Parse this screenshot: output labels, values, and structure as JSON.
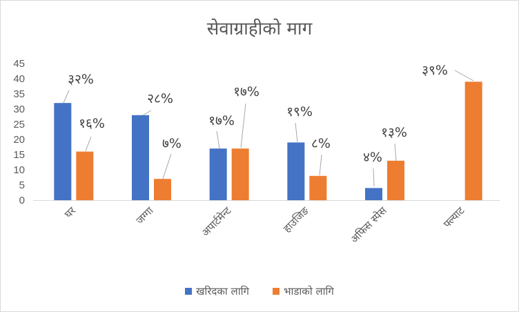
{
  "chart_data": {
    "type": "bar",
    "title": "सेवाग्राहीको माग",
    "categories": [
      "घर",
      "जग्गा",
      "अपार्टमेन्ट",
      "हाउजिङ",
      "अफिस स्पेस",
      "फ्ल्याट"
    ],
    "series": [
      {
        "name": "खरिदका लागि",
        "color": "#4472c4",
        "values": [
          32,
          28,
          17,
          19,
          4,
          null
        ],
        "labels": [
          "३२%",
          "२८%",
          "१७%",
          "१९%",
          "४%",
          ""
        ]
      },
      {
        "name": "भाडाको लागि",
        "color": "#ed7d31",
        "values": [
          16,
          7,
          17,
          8,
          13,
          39
        ],
        "labels": [
          "१६%",
          "७%",
          "१७%",
          "८%",
          "१३%",
          "३९%"
        ]
      }
    ],
    "yticks": [
      0,
      5,
      10,
      15,
      20,
      25,
      30,
      35,
      40,
      45
    ],
    "ylim": [
      0,
      45
    ],
    "xlabel": "",
    "ylabel": "",
    "legend": "bottom",
    "grid": false
  }
}
